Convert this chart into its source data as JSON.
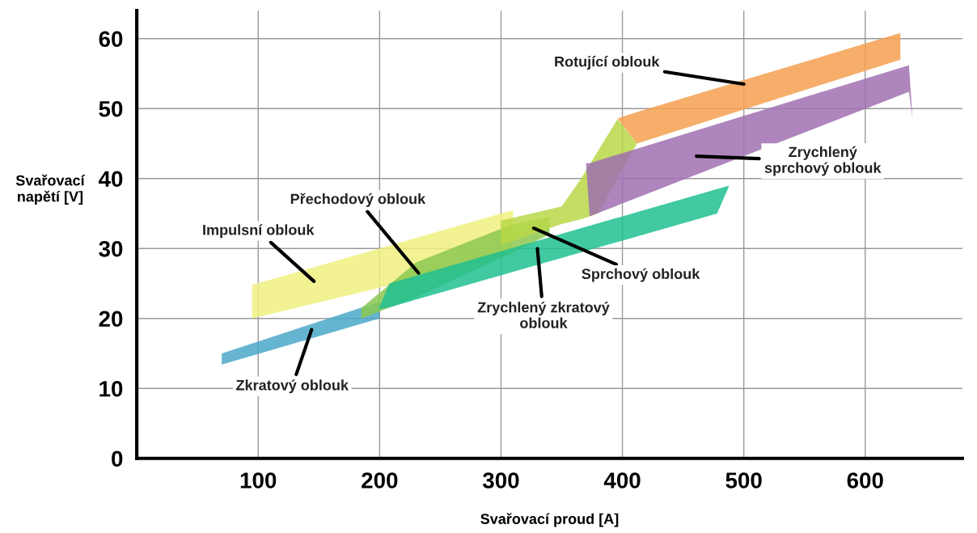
{
  "chart_data": {
    "type": "area",
    "xlabel": "Svařovací proud [A]",
    "ylabel": "Svařovací\nnapětí [V]",
    "xlim": [
      0,
      680
    ],
    "ylim": [
      0,
      64
    ],
    "xticks": [
      100,
      200,
      300,
      400,
      500,
      600
    ],
    "yticks": [
      0,
      10,
      20,
      30,
      40,
      50,
      60
    ],
    "grid": true,
    "series": [
      {
        "color": "#4aa8c8",
        "x": [
          70,
          200
        ],
        "values": [
          null,
          null
        ],
        "lower": [
          13.4,
          20
        ],
        "upper": [
          15,
          22.4
        ]
      },
      {
        "color": "#f0f080",
        "x": [
          95,
          310
        ],
        "values": [
          null,
          null
        ],
        "lower": [
          20,
          29
        ],
        "upper": [
          24.8,
          35.5
        ]
      },
      {
        "color": "#8cc850",
        "x": [
          185,
          230,
          310,
          340
        ],
        "values": [
          null,
          null,
          null,
          null
        ],
        "lower": [
          20,
          23,
          29.5,
          32
        ],
        "upper": [
          21.5,
          28,
          33.5,
          34.5
        ]
      },
      {
        "color": "#b8d848",
        "x": [
          300,
          350,
          366,
          380,
          396,
          412
        ],
        "values": [
          null,
          null,
          null,
          null,
          null,
          null
        ],
        "lower": [
          30.5,
          33.5,
          34.2,
          35,
          40,
          45
        ],
        "upper": [
          34,
          36,
          40,
          44,
          48.5,
          45
        ]
      },
      {
        "color": "#f4a050",
        "x": [
          396,
          412,
          629
        ],
        "values": [
          null,
          null,
          null
        ],
        "lower": [
          48.6,
          45,
          57
        ],
        "upper": [
          48.6,
          49.5,
          60.8
        ]
      },
      {
        "color": "#a070b0",
        "x": [
          370,
          373,
          636,
          639
        ],
        "values": [
          null,
          null,
          null,
          null
        ],
        "lower": [
          42.2,
          34.6,
          52.4,
          48.6
        ],
        "upper": [
          42.2,
          42.2,
          56.2,
          48.6
        ]
      },
      {
        "color": "#20c090",
        "x": [
          199,
          208,
          478,
          488
        ],
        "values": [
          null,
          null,
          null,
          null
        ],
        "lower": [
          21.3,
          21.6,
          35,
          39
        ],
        "upper": [
          21.3,
          25,
          38.5,
          39
        ]
      }
    ],
    "annotations": [
      {
        "text": "Rotující oblouk",
        "x": 500,
        "y": 53.5
      },
      "Zrychlený\nsprchový oblouk",
      {
        "text": "Přechodový oblouk",
        "x": 232,
        "y": 26.5
      },
      "Impulsní oblouk",
      "Sprchový oblouk",
      "Zrychlený zkratový\noblouk",
      "Zkratový oblouk"
    ]
  }
}
